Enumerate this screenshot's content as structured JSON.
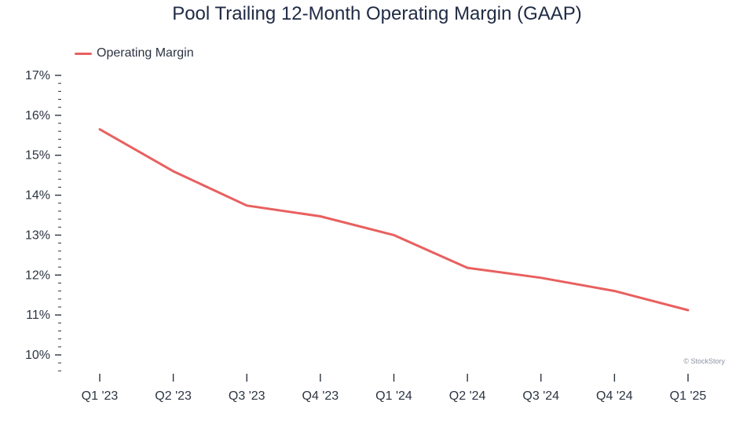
{
  "chart_data": {
    "type": "line",
    "title": "Pool Trailing 12-Month Operating Margin (GAAP)",
    "xlabel": "",
    "ylabel": "",
    "categories": [
      "Q1 '23",
      "Q2 '23",
      "Q3 '23",
      "Q4 '23",
      "Q1 '24",
      "Q2 '24",
      "Q3 '24",
      "Q4 '24",
      "Q1 '25"
    ],
    "series": [
      {
        "name": "Operating Margin",
        "color": "#e8605f",
        "values": [
          15.65,
          14.6,
          13.74,
          13.47,
          13.0,
          12.18,
          11.93,
          11.6,
          11.12
        ]
      }
    ],
    "ylim": [
      9.6,
      17.0
    ],
    "yticks": [
      10,
      11,
      12,
      13,
      14,
      15,
      16,
      17
    ],
    "ytick_labels": [
      "10%",
      "11%",
      "12%",
      "13%",
      "14%",
      "15%",
      "16%",
      "17%"
    ],
    "legend": "top-left",
    "grid": false,
    "watermark": "© StockStory"
  }
}
